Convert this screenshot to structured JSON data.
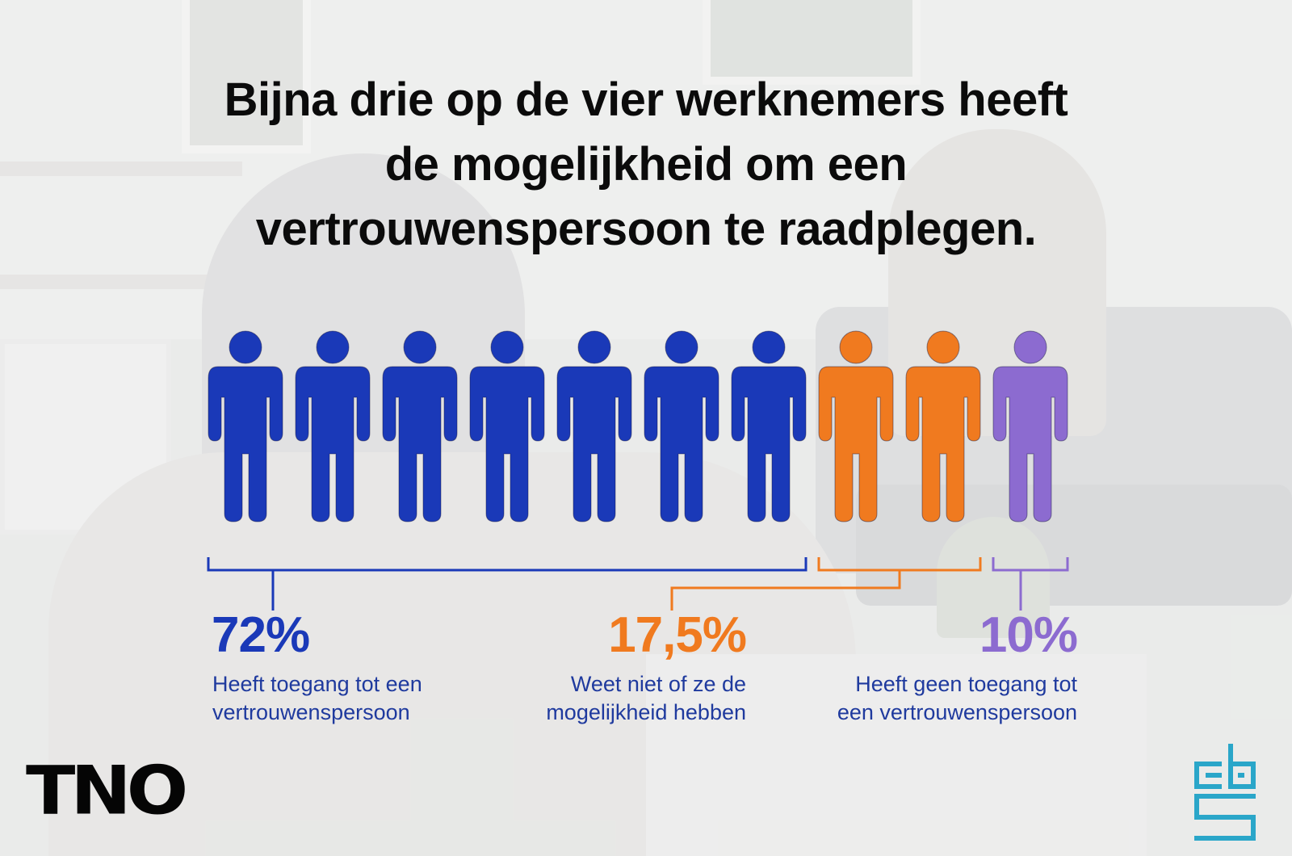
{
  "title_lines": [
    "Bijna drie op de vier werknemers heeft",
    "de mogelijkheid om een",
    "vertrouwenspersoon te raadplegen."
  ],
  "chart_data": {
    "type": "pictogram",
    "icons_total": 10,
    "series": [
      {
        "value_label": "72%",
        "value": 72,
        "icons": 7,
        "label_lines": [
          "Heeft toegang tot een",
          "vertrouwenspersoon"
        ],
        "color": "#1a39b8"
      },
      {
        "value_label": "17,5%",
        "value": 17.5,
        "icons": 2,
        "label_lines": [
          "Weet niet of ze de",
          "mogelijkheid hebben"
        ],
        "color": "#f07a1f"
      },
      {
        "value_label": "10%",
        "value": 10,
        "icons": 1,
        "label_lines": [
          "Heeft geen toegang tot",
          "een vertrouwenspersoon"
        ],
        "color": "#8c6bd0"
      }
    ]
  },
  "logos": {
    "left": "TNO",
    "right": "cbs"
  },
  "colors": {
    "title": "#0b0b0b",
    "text": "#1f3a9e"
  }
}
